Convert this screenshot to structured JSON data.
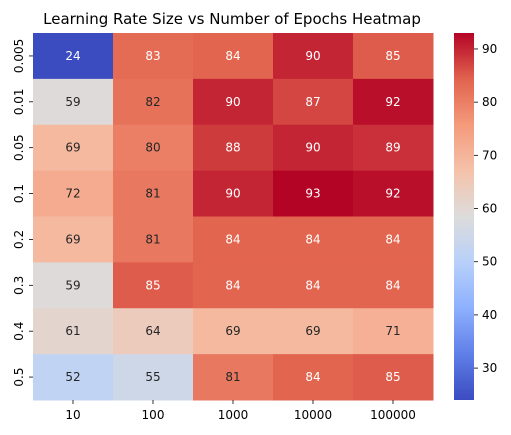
{
  "chart_data": {
    "type": "heatmap",
    "title": "Learning Rate Size vs Number of Epochs Heatmap",
    "xlabel": "",
    "ylabel": "",
    "x_categories": [
      "10",
      "100",
      "1000",
      "10000",
      "100000"
    ],
    "y_categories": [
      "0.005",
      "0.01",
      "0.05",
      "0.1",
      "0.2",
      "0.3",
      "0.4",
      "0.5"
    ],
    "values": [
      [
        24,
        83,
        84,
        90,
        85
      ],
      [
        59,
        82,
        90,
        87,
        92
      ],
      [
        69,
        80,
        88,
        90,
        89
      ],
      [
        72,
        81,
        90,
        93,
        92
      ],
      [
        69,
        81,
        84,
        84,
        84
      ],
      [
        59,
        85,
        84,
        84,
        84
      ],
      [
        61,
        64,
        69,
        69,
        71
      ],
      [
        52,
        55,
        81,
        84,
        85
      ]
    ],
    "colormap": "coolwarm",
    "colorbar": {
      "range": [
        24,
        93
      ],
      "ticks": [
        "30",
        "40",
        "50",
        "60",
        "70",
        "80",
        "90"
      ]
    },
    "annotations": true
  }
}
